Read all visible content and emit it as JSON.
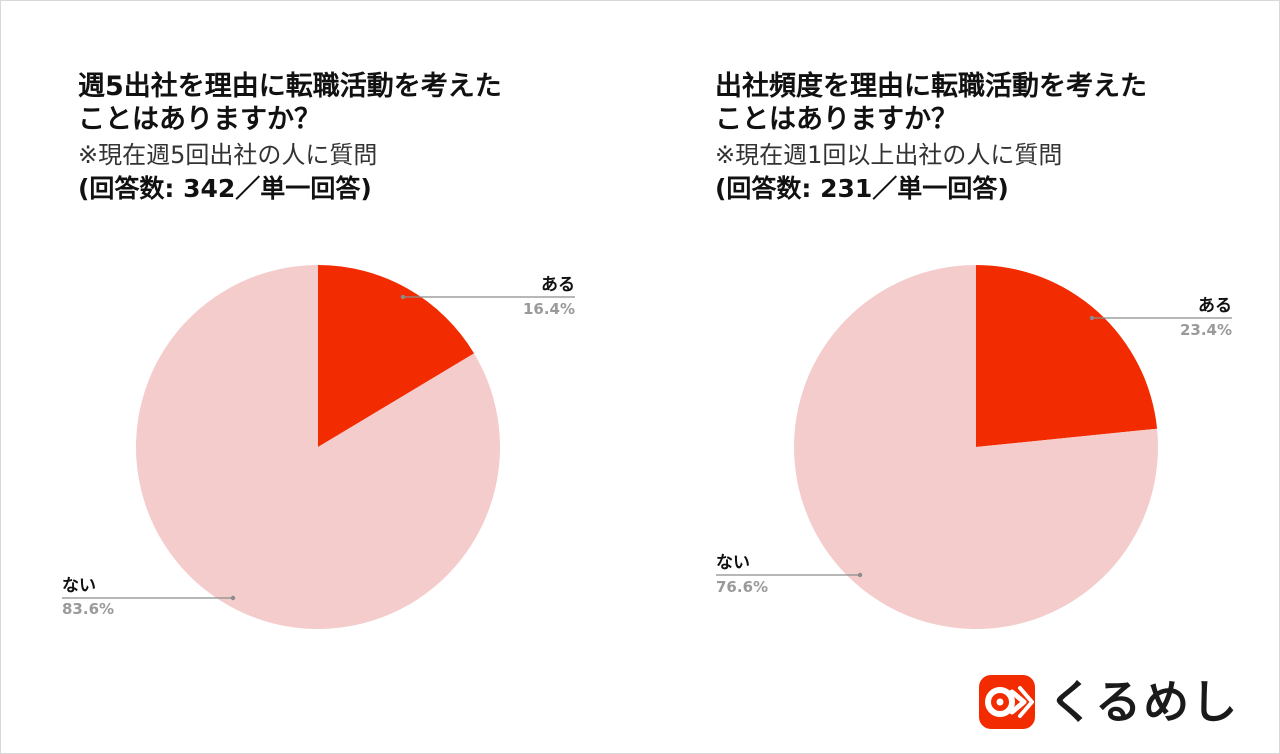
{
  "chart_data": [
    {
      "type": "pie",
      "title": "週5出社を理由に転職活動を考えたことはありますか？",
      "title_lines": [
        "週5出社を理由に転職活動を考えた",
        "ことはありますか？"
      ],
      "subtitle": "※現在週5回出社の人に質問",
      "responses": "(回答数: 342／単一回答)",
      "slices": [
        {
          "label": "ある",
          "value": 16.4,
          "value_label": "16.4%",
          "color": "#f22c00"
        },
        {
          "label": "ない",
          "value": 83.6,
          "value_label": "83.6%",
          "color": "#f4cccc"
        }
      ]
    },
    {
      "type": "pie",
      "title": "出社頻度を理由に転職活動を考えたことはありますか？",
      "title_lines": [
        "出社頻度を理由に転職活動を考えた",
        "ことはありますか？"
      ],
      "subtitle": "※現在週1回以上出社の人に質問",
      "responses": "(回答数: 231／単一回答)",
      "slices": [
        {
          "label": "ある",
          "value": 23.4,
          "value_label": "23.4%",
          "color": "#f22c00"
        },
        {
          "label": "ない",
          "value": 76.6,
          "value_label": "76.6%",
          "color": "#f4cccc"
        }
      ]
    }
  ],
  "logo": {
    "text": "くるめし",
    "color": "#f22c00"
  }
}
